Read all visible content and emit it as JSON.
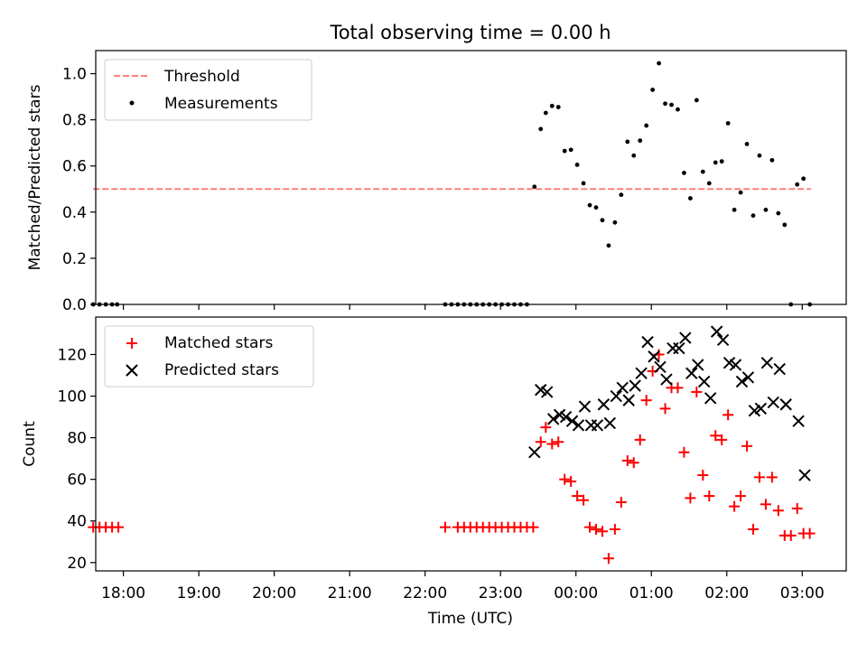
{
  "title": "Total observing time = 0.00 h",
  "colors": {
    "threshold": "#ff7f7f",
    "measurements": "#000000",
    "matched": "#ff0000",
    "predicted": "#000000"
  },
  "chart_data": [
    {
      "type": "scatter",
      "ylabel": "Matched/Predicted stars",
      "ylim": [
        0,
        1.1
      ],
      "xlim": [
        "17:38",
        "03:35"
      ],
      "yticks": [
        "0.0",
        "0.2",
        "0.4",
        "0.6",
        "0.8",
        "1.0"
      ],
      "legend": {
        "placement": "upper-left",
        "entries": [
          "Threshold",
          "Measurements"
        ]
      },
      "threshold": {
        "name": "Threshold",
        "value": 0.5,
        "x": [
          "17:36",
          "03:07"
        ],
        "style": "dashed"
      },
      "series": [
        {
          "name": "Measurements",
          "marker": "dot",
          "points": [
            [
              "17:36",
              0.0
            ],
            [
              "17:41",
              0.0
            ],
            [
              "17:46",
              0.0
            ],
            [
              "17:51",
              0.0
            ],
            [
              "17:55",
              0.0
            ],
            [
              "22:16",
              0.0
            ],
            [
              "22:21",
              0.0
            ],
            [
              "22:26",
              0.0
            ],
            [
              "22:31",
              0.0
            ],
            [
              "22:36",
              0.0
            ],
            [
              "22:41",
              0.0
            ],
            [
              "22:46",
              0.0
            ],
            [
              "22:51",
              0.0
            ],
            [
              "22:56",
              0.0
            ],
            [
              "23:01",
              0.0
            ],
            [
              "23:06",
              0.0
            ],
            [
              "23:11",
              0.0
            ],
            [
              "23:16",
              0.0
            ],
            [
              "23:21",
              0.0
            ],
            [
              "23:27",
              0.51
            ],
            [
              "23:32",
              0.76
            ],
            [
              "23:36",
              0.83
            ],
            [
              "23:41",
              0.86
            ],
            [
              "23:46",
              0.855
            ],
            [
              "23:51",
              0.665
            ],
            [
              "23:56",
              0.67
            ],
            [
              "00:01",
              0.605
            ],
            [
              "00:06",
              0.525
            ],
            [
              "00:11",
              0.43
            ],
            [
              "00:16",
              0.42
            ],
            [
              "00:21",
              0.365
            ],
            [
              "00:26",
              0.255
            ],
            [
              "00:31",
              0.355
            ],
            [
              "00:36",
              0.475
            ],
            [
              "00:41",
              0.705
            ],
            [
              "00:46",
              0.645
            ],
            [
              "00:51",
              0.71
            ],
            [
              "00:56",
              0.775
            ],
            [
              "01:01",
              0.93
            ],
            [
              "01:06",
              1.045
            ],
            [
              "01:11",
              0.87
            ],
            [
              "01:16",
              0.865
            ],
            [
              "01:21",
              0.845
            ],
            [
              "01:26",
              0.57
            ],
            [
              "01:31",
              0.46
            ],
            [
              "01:36",
              0.885
            ],
            [
              "01:41",
              0.575
            ],
            [
              "01:46",
              0.525
            ],
            [
              "01:51",
              0.615
            ],
            [
              "01:56",
              0.62
            ],
            [
              "02:01",
              0.785
            ],
            [
              "02:06",
              0.41
            ],
            [
              "02:11",
              0.485
            ],
            [
              "02:16",
              0.695
            ],
            [
              "02:21",
              0.385
            ],
            [
              "02:26",
              0.645
            ],
            [
              "02:31",
              0.41
            ],
            [
              "02:36",
              0.625
            ],
            [
              "02:41",
              0.395
            ],
            [
              "02:46",
              0.345
            ],
            [
              "02:51",
              0.0
            ],
            [
              "02:56",
              0.52
            ],
            [
              "03:01",
              0.545
            ],
            [
              "03:06",
              0.0
            ]
          ]
        }
      ]
    },
    {
      "type": "scatter",
      "ylabel": "Count",
      "xlabel": "Time (UTC)",
      "ylim": [
        16,
        138
      ],
      "xlim": [
        "17:38",
        "03:35"
      ],
      "yticks": [
        "20",
        "40",
        "60",
        "80",
        "100",
        "120"
      ],
      "xticks": [
        "18:00",
        "19:00",
        "20:00",
        "21:00",
        "22:00",
        "23:00",
        "00:00",
        "01:00",
        "02:00",
        "03:00"
      ],
      "legend": {
        "placement": "upper-left",
        "entries": [
          "Matched stars",
          "Predicted stars"
        ]
      },
      "series": [
        {
          "name": "Matched stars",
          "marker": "plus",
          "points": [
            [
              "17:36",
              37
            ],
            [
              "17:41",
              37
            ],
            [
              "17:46",
              37
            ],
            [
              "17:51",
              37
            ],
            [
              "17:56",
              37
            ],
            [
              "22:16",
              37
            ],
            [
              "22:26",
              37
            ],
            [
              "22:31",
              37
            ],
            [
              "22:36",
              37
            ],
            [
              "22:41",
              37
            ],
            [
              "22:46",
              37
            ],
            [
              "22:51",
              37
            ],
            [
              "22:56",
              37
            ],
            [
              "23:01",
              37
            ],
            [
              "23:06",
              37
            ],
            [
              "23:11",
              37
            ],
            [
              "23:16",
              37
            ],
            [
              "23:21",
              37
            ],
            [
              "23:26",
              37
            ],
            [
              "23:32",
              78
            ],
            [
              "23:36",
              85
            ],
            [
              "23:41",
              77
            ],
            [
              "23:46",
              78
            ],
            [
              "23:51",
              60
            ],
            [
              "23:56",
              59
            ],
            [
              "00:01",
              52
            ],
            [
              "00:06",
              50
            ],
            [
              "00:11",
              37
            ],
            [
              "00:16",
              36
            ],
            [
              "00:21",
              35
            ],
            [
              "00:26",
              22
            ],
            [
              "00:31",
              36
            ],
            [
              "00:36",
              49
            ],
            [
              "00:41",
              69
            ],
            [
              "00:46",
              68
            ],
            [
              "00:51",
              79
            ],
            [
              "00:56",
              98
            ],
            [
              "01:01",
              112
            ],
            [
              "01:06",
              120
            ],
            [
              "01:11",
              94
            ],
            [
              "01:16",
              104
            ],
            [
              "01:21",
              104
            ],
            [
              "01:26",
              73
            ],
            [
              "01:31",
              51
            ],
            [
              "01:36",
              102
            ],
            [
              "01:41",
              62
            ],
            [
              "01:46",
              52
            ],
            [
              "01:51",
              81
            ],
            [
              "01:56",
              79
            ],
            [
              "02:01",
              91
            ],
            [
              "02:06",
              47
            ],
            [
              "02:11",
              52
            ],
            [
              "02:16",
              76
            ],
            [
              "02:21",
              36
            ],
            [
              "02:26",
              61
            ],
            [
              "02:31",
              48
            ],
            [
              "02:36",
              61
            ],
            [
              "02:41",
              45
            ],
            [
              "02:46",
              33
            ],
            [
              "02:51",
              33
            ],
            [
              "02:56",
              46
            ],
            [
              "03:01",
              34
            ],
            [
              "03:06",
              34
            ]
          ]
        },
        {
          "name": "Predicted stars",
          "marker": "x",
          "points": [
            [
              "23:27",
              73
            ],
            [
              "23:32",
              103
            ],
            [
              "23:37",
              102
            ],
            [
              "23:42",
              89
            ],
            [
              "23:47",
              91
            ],
            [
              "23:52",
              90
            ],
            [
              "23:57",
              88
            ],
            [
              "00:02",
              86
            ],
            [
              "00:07",
              95
            ],
            [
              "00:12",
              86
            ],
            [
              "00:17",
              86
            ],
            [
              "00:22",
              96
            ],
            [
              "00:27",
              87
            ],
            [
              "00:32",
              100
            ],
            [
              "00:37",
              104
            ],
            [
              "00:42",
              98
            ],
            [
              "00:47",
              105
            ],
            [
              "00:52",
              111
            ],
            [
              "00:57",
              126
            ],
            [
              "01:02",
              119
            ],
            [
              "01:07",
              114
            ],
            [
              "01:12",
              108
            ],
            [
              "01:17",
              123
            ],
            [
              "01:22",
              123
            ],
            [
              "01:27",
              128
            ],
            [
              "01:32",
              111
            ],
            [
              "01:37",
              115
            ],
            [
              "01:42",
              107
            ],
            [
              "01:47",
              99
            ],
            [
              "01:52",
              131
            ],
            [
              "01:57",
              127
            ],
            [
              "02:02",
              116
            ],
            [
              "02:07",
              115
            ],
            [
              "02:12",
              107
            ],
            [
              "02:17",
              109
            ],
            [
              "02:22",
              93
            ],
            [
              "02:27",
              94
            ],
            [
              "02:32",
              116
            ],
            [
              "02:37",
              97
            ],
            [
              "02:42",
              113
            ],
            [
              "02:47",
              96
            ],
            [
              "02:57",
              88
            ],
            [
              "03:02",
              62
            ]
          ]
        }
      ]
    }
  ]
}
